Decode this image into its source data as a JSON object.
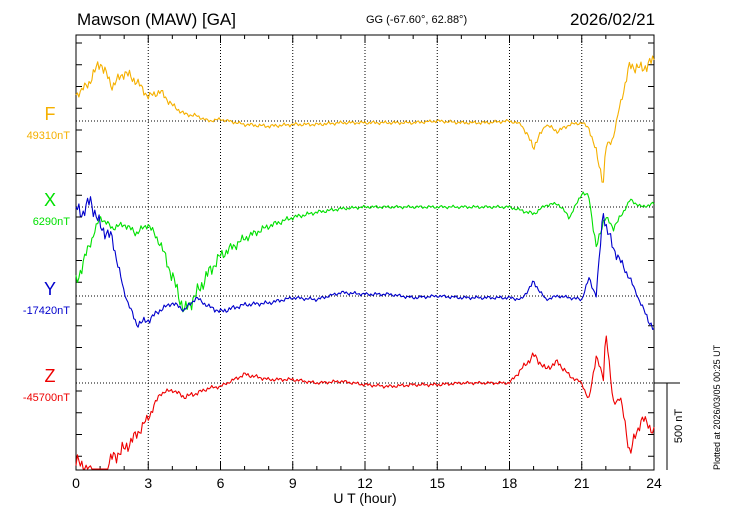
{
  "header": {
    "title": "Mawson (MAW)  [GA]",
    "coords": "GG (-67.60°,  62.88°)",
    "date": "2026/02/21",
    "plotted": "Plotted at 2026/03/05 00:25 UT"
  },
  "colors": {
    "F": "#f5b000",
    "X": "#00e000",
    "Y": "#0000cc",
    "Z": "#ee0000"
  },
  "chart_data": {
    "type": "line",
    "title": "Mawson (MAW)  [GA]",
    "xlabel": "U T (hour)",
    "ylabel": "",
    "xlim": [
      0,
      24
    ],
    "x_ticks": [
      "0",
      "3",
      "6",
      "9",
      "12",
      "15",
      "18",
      "21",
      "24"
    ],
    "scale_bar": "500 nT",
    "scale_bar_nT": 500,
    "grid": true,
    "series": [
      {
        "name": "F",
        "baseline_label": "49310nT",
        "baseline_nT": 49310,
        "color": "#f5b000",
        "x": [
          0,
          0.5,
          1,
          1.5,
          2,
          2.5,
          3,
          3.5,
          4,
          4.5,
          5,
          5.5,
          6,
          7,
          8,
          9,
          10,
          11,
          12,
          13,
          14,
          15,
          16,
          17,
          18,
          18.5,
          19,
          19.5,
          20,
          20.5,
          21,
          21.3,
          21.6,
          21.9,
          22,
          22.3,
          22.6,
          23,
          23.5,
          24
        ],
        "nT_offset": [
          150,
          210,
          340,
          200,
          280,
          230,
          140,
          170,
          90,
          40,
          30,
          0,
          10,
          -20,
          -30,
          -20,
          -20,
          -10,
          -10,
          -10,
          -10,
          0,
          -10,
          -10,
          0,
          -20,
          -150,
          -20,
          -60,
          -20,
          -10,
          -40,
          -180,
          -350,
          -150,
          -100,
          100,
          320,
          300,
          350
        ]
      },
      {
        "name": "X",
        "baseline_label": "6290nT",
        "baseline_nT": 6290,
        "color": "#00e000",
        "x": [
          0,
          0.5,
          1,
          1.5,
          2,
          2.5,
          3,
          3.5,
          4,
          4.5,
          5,
          5.5,
          6,
          7,
          8,
          9,
          10,
          11,
          12,
          13,
          14,
          15,
          16,
          17,
          18,
          18.5,
          19,
          19.5,
          20,
          20.5,
          21,
          21.3,
          21.6,
          21.9,
          22,
          22.3,
          22.6,
          23,
          23.5,
          24
        ],
        "nT_offset": [
          -440,
          -240,
          -60,
          -120,
          -100,
          -150,
          -100,
          -210,
          -400,
          -600,
          -500,
          -380,
          -280,
          -180,
          -110,
          -60,
          -30,
          -10,
          0,
          0,
          0,
          0,
          0,
          0,
          0,
          -20,
          -40,
          10,
          20,
          -60,
          80,
          60,
          -240,
          -80,
          -60,
          -120,
          -60,
          40,
          0,
          20
        ]
      },
      {
        "name": "Y",
        "baseline_label": "-17420nT",
        "baseline_nT": -17420,
        "color": "#0000cc",
        "x": [
          0,
          0.3,
          0.6,
          1,
          1.5,
          2,
          2.5,
          3,
          3.5,
          4,
          4.5,
          5,
          5.5,
          6,
          7,
          8,
          9,
          10,
          11,
          12,
          13,
          14,
          15,
          16,
          17,
          18,
          18.5,
          19,
          19.5,
          20,
          20.5,
          21,
          21.3,
          21.6,
          21.9,
          22,
          22.3,
          22.6,
          23,
          23.5,
          24
        ],
        "nT_offset": [
          500,
          480,
          550,
          400,
          330,
          20,
          -160,
          -140,
          -80,
          -40,
          -80,
          -10,
          -60,
          -90,
          -50,
          -40,
          -10,
          -20,
          20,
          10,
          10,
          -10,
          0,
          -10,
          -10,
          -10,
          -20,
          80,
          -20,
          0,
          -10,
          -20,
          100,
          0,
          500,
          400,
          280,
          200,
          100,
          -60,
          -200
        ]
      },
      {
        "name": "Z",
        "baseline_label": "-45700nT",
        "baseline_nT": -45700,
        "color": "#ee0000",
        "x": [
          0,
          0.5,
          1,
          1.5,
          2,
          2.5,
          3,
          3.5,
          4,
          4.5,
          5,
          5.5,
          6,
          7,
          8,
          9,
          10,
          11,
          12,
          13,
          14,
          15,
          16,
          17,
          18,
          18.5,
          19,
          19.5,
          20,
          20.5,
          21,
          21.3,
          21.6,
          21.9,
          22,
          22.3,
          22.6,
          23,
          23.5,
          24
        ],
        "nT_offset": [
          -450,
          -500,
          -580,
          -430,
          -380,
          -300,
          -200,
          -60,
          -40,
          -80,
          -60,
          -30,
          -20,
          50,
          20,
          20,
          0,
          10,
          -10,
          -20,
          -10,
          -10,
          0,
          0,
          0,
          80,
          160,
          80,
          120,
          40,
          0,
          -100,
          160,
          20,
          320,
          -120,
          -80,
          -400,
          -200,
          -280
        ]
      }
    ]
  }
}
